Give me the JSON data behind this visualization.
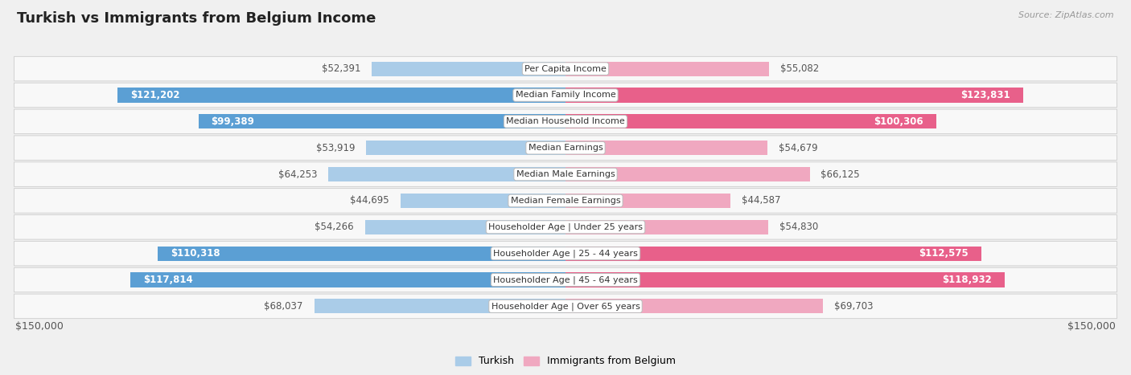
{
  "title": "Turkish vs Immigrants from Belgium Income",
  "source": "Source: ZipAtlas.com",
  "categories": [
    "Per Capita Income",
    "Median Family Income",
    "Median Household Income",
    "Median Earnings",
    "Median Male Earnings",
    "Median Female Earnings",
    "Householder Age | Under 25 years",
    "Householder Age | 25 - 44 years",
    "Householder Age | 45 - 64 years",
    "Householder Age | Over 65 years"
  ],
  "turkish_values": [
    52391,
    121202,
    99389,
    53919,
    64253,
    44695,
    54266,
    110318,
    117814,
    68037
  ],
  "belgium_values": [
    55082,
    123831,
    100306,
    54679,
    66125,
    44587,
    54830,
    112575,
    118932,
    69703
  ],
  "turkish_color_dark": "#5b9fd4",
  "turkish_color_light": "#aacce8",
  "belgium_color_dark": "#e8608a",
  "belgium_color_light": "#f0a8c0",
  "turkish_label": "Turkish",
  "belgium_label": "Immigrants from Belgium",
  "x_max": 150000,
  "x_label_left": "$150,000",
  "x_label_right": "$150,000",
  "background_color": "#f0f0f0",
  "row_bg_color": "#f8f8f8",
  "title_fontsize": 13,
  "label_fontsize": 8.5
}
